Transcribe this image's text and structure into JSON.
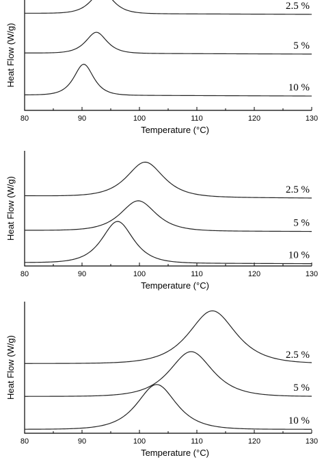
{
  "chart_data": [
    {
      "type": "line",
      "xlabel": "Temperature (°C)",
      "ylabel": "Heat Flow (W/g)",
      "xlim": [
        80,
        130
      ],
      "xticks": [
        "80",
        "90",
        "100",
        "110",
        "120",
        "130"
      ],
      "series": [
        {
          "name": "2.5 %",
          "baseline": 0.88,
          "peak_x": 93.5,
          "peak_height": 0.2,
          "width": 1.7,
          "slope": -0.01
        },
        {
          "name": "5 %",
          "baseline": 0.52,
          "peak_x": 92.5,
          "peak_height": 0.19,
          "width": 1.6,
          "slope": -0.01
        },
        {
          "name": "10 %",
          "baseline": 0.14,
          "peak_x": 90.3,
          "peak_height": 0.28,
          "width": 1.5,
          "slope": -0.01
        }
      ]
    },
    {
      "type": "line",
      "xlabel": "Temperature (°C)",
      "ylabel": "Heat Flow (W/g)",
      "xlim": [
        80,
        130
      ],
      "xticks": [
        "80",
        "90",
        "100",
        "110",
        "120",
        "130"
      ],
      "series": [
        {
          "name": "2.5 %",
          "baseline": 0.61,
          "peak_x": 101.0,
          "peak_height": 0.3,
          "width": 2.8,
          "slope": -0.02
        },
        {
          "name": "5 %",
          "baseline": 0.31,
          "peak_x": 99.8,
          "peak_height": 0.26,
          "width": 2.7,
          "slope": -0.01
        },
        {
          "name": "10 %",
          "baseline": 0.03,
          "peak_x": 96.2,
          "peak_height": 0.36,
          "width": 2.4,
          "slope": -0.01
        }
      ]
    },
    {
      "type": "line",
      "xlabel": "Temperature (°C)",
      "ylabel": "Heat Flow (W/g)",
      "xlim": [
        80,
        130
      ],
      "xticks": [
        "80",
        "90",
        "100",
        "110",
        "120",
        "130"
      ],
      "series": [
        {
          "name": "2.5 %",
          "baseline": 0.53,
          "peak_x": 112.7,
          "peak_height": 0.4,
          "width": 3.6,
          "slope": 0.0
        },
        {
          "name": "5 %",
          "baseline": 0.28,
          "peak_x": 109.0,
          "peak_height": 0.34,
          "width": 3.3,
          "slope": 0.0
        },
        {
          "name": "10 %",
          "baseline": 0.03,
          "peak_x": 103.0,
          "peak_height": 0.34,
          "width": 3.0,
          "slope": 0.0
        }
      ]
    }
  ]
}
